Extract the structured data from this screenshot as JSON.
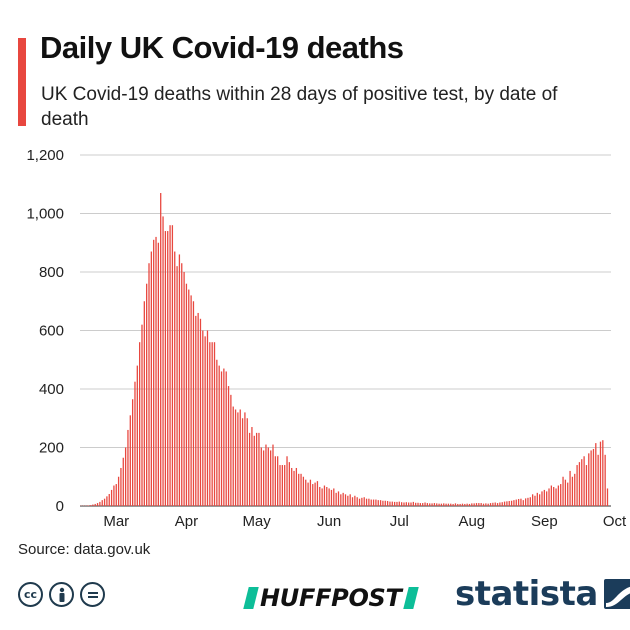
{
  "header": {
    "title": "Daily UK Covid-19 deaths",
    "subtitle": "UK Covid-19 deaths within 28 days of positive test, by date of death"
  },
  "footer": {
    "source": "Source: data.gov.uk",
    "license_icons": [
      "cc-icon",
      "attribution-icon",
      "no-derivatives-icon"
    ],
    "huffpost_logo": "HUFFPOST",
    "statista_logo": "statista"
  },
  "colors": {
    "bar": "#e8473f",
    "accent": "#e8473f",
    "grid": "#cccccc",
    "huffpost_green": "#0dbe98",
    "statista_navy": "#1b3c5a"
  },
  "chart_data": {
    "type": "bar",
    "title": "Daily UK Covid-19 deaths",
    "subtitle": "UK Covid-19 deaths within 28 days of positive test, by date of death",
    "xlabel": "",
    "ylabel": "",
    "ylim": [
      0,
      1200
    ],
    "yticks": [
      0,
      200,
      400,
      600,
      800,
      1000,
      1200
    ],
    "ytick_labels": [
      "0",
      "200",
      "400",
      "600",
      "800",
      "1,000",
      "1,200"
    ],
    "grid": true,
    "x_start": "2020-03-01",
    "x_end": "2020-10-13",
    "month_labels": [
      {
        "label": "Mar",
        "date": "2020-03-16"
      },
      {
        "label": "Apr",
        "date": "2020-04-15"
      },
      {
        "label": "May",
        "date": "2020-05-15"
      },
      {
        "label": "Jun",
        "date": "2020-06-15"
      },
      {
        "label": "Jul",
        "date": "2020-07-15"
      },
      {
        "label": "Aug",
        "date": "2020-08-15"
      },
      {
        "label": "Sep",
        "date": "2020-09-15"
      },
      {
        "label": "Oct",
        "date": "2020-10-15"
      }
    ],
    "series": [
      {
        "values": [
          1,
          1,
          1,
          2,
          3,
          5,
          7,
          10,
          14,
          20,
          25,
          33,
          41,
          55,
          70,
          75,
          100,
          130,
          165,
          200,
          260,
          310,
          365,
          425,
          480,
          560,
          620,
          700,
          760,
          830,
          870,
          910,
          920,
          900,
          1070,
          990,
          940,
          940,
          960,
          960,
          870,
          820,
          860,
          830,
          800,
          760,
          740,
          720,
          700,
          650,
          660,
          640,
          600,
          580,
          600,
          560,
          560,
          560,
          500,
          480,
          460,
          470,
          460,
          410,
          380,
          340,
          330,
          320,
          330,
          300,
          320,
          300,
          250,
          270,
          240,
          250,
          250,
          200,
          190,
          210,
          200,
          190,
          210,
          170,
          170,
          140,
          140,
          140,
          170,
          150,
          130,
          120,
          130,
          110,
          110,
          100,
          90,
          80,
          90,
          75,
          80,
          85,
          65,
          60,
          70,
          65,
          60,
          55,
          60,
          45,
          50,
          40,
          45,
          40,
          35,
          40,
          30,
          35,
          30,
          25,
          28,
          30,
          25,
          25,
          22,
          22,
          22,
          20,
          20,
          18,
          18,
          17,
          15,
          15,
          14,
          14,
          15,
          13,
          12,
          13,
          12,
          12,
          14,
          11,
          11,
          10,
          10,
          12,
          10,
          9,
          9,
          10,
          9,
          8,
          8,
          9,
          8,
          8,
          8,
          7,
          9,
          7,
          7,
          8,
          7,
          8,
          7,
          9,
          9,
          10,
          10,
          10,
          8,
          9,
          8,
          10,
          11,
          12,
          10,
          12,
          13,
          15,
          16,
          17,
          18,
          20,
          22,
          24,
          25,
          20,
          26,
          28,
          30,
          40,
          35,
          45,
          40,
          50,
          55,
          50,
          60,
          70,
          65,
          60,
          70,
          75,
          100,
          90,
          80,
          120,
          100,
          110,
          140,
          150,
          160,
          170,
          140,
          180,
          190,
          195,
          215,
          175,
          220,
          225,
          175,
          60
        ]
      }
    ]
  }
}
